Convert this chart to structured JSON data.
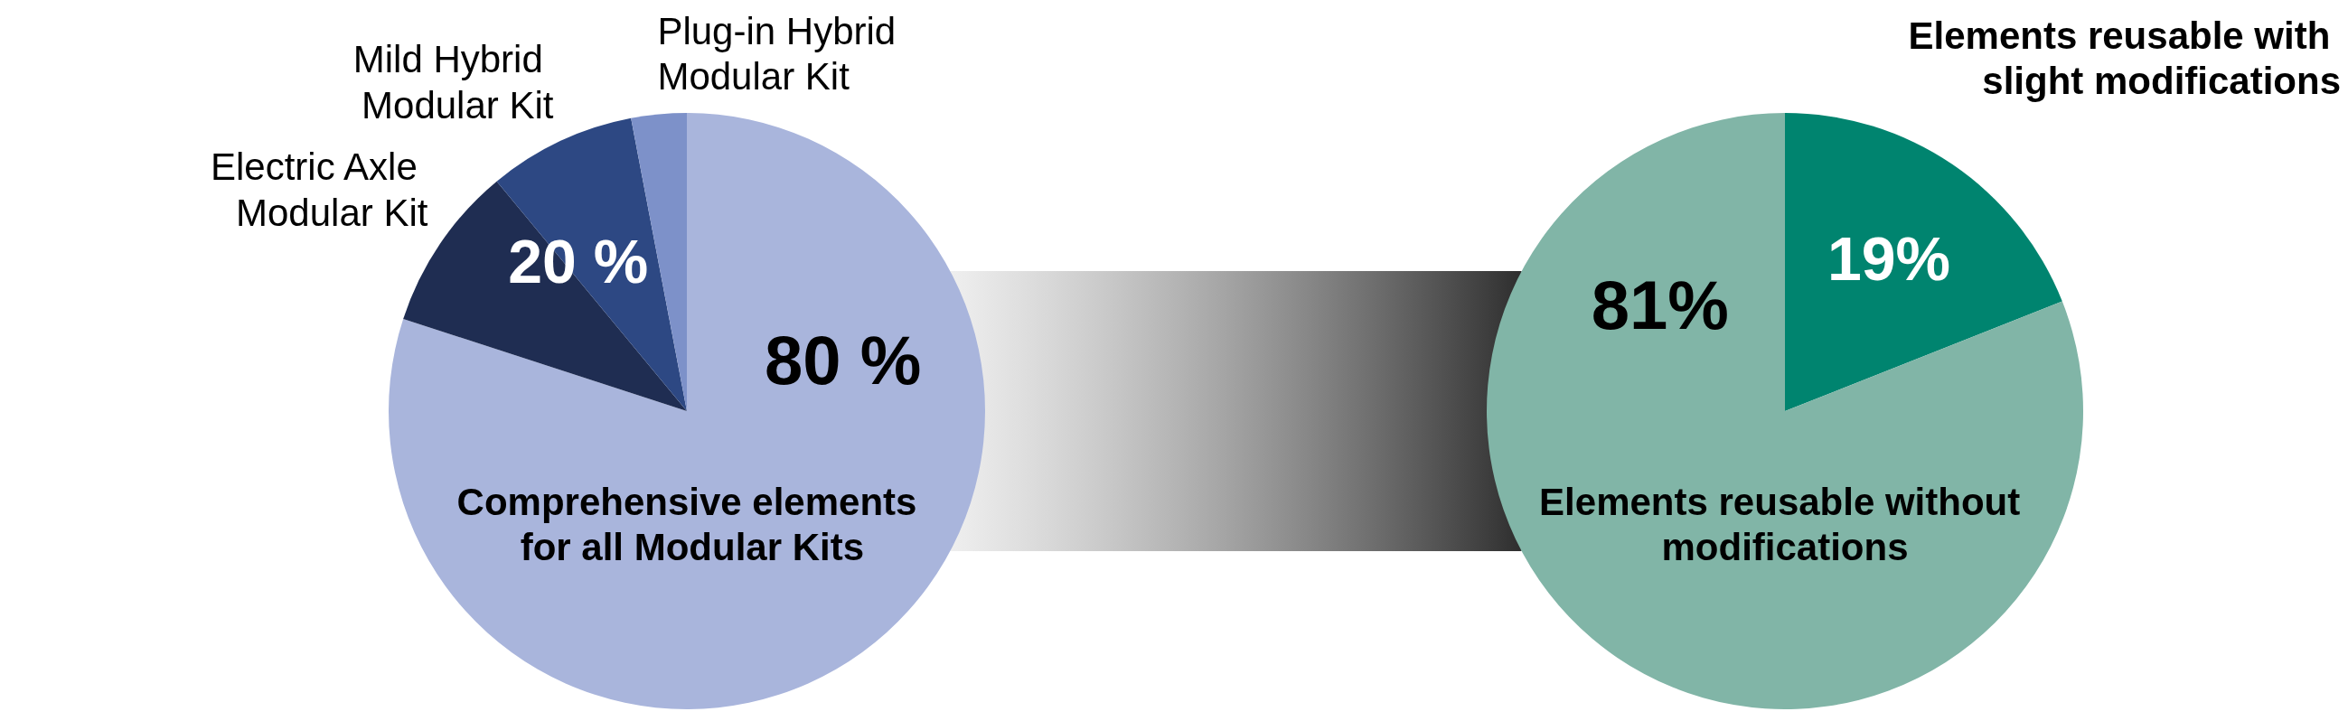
{
  "chart_data": [
    {
      "type": "pie",
      "categories": [
        "Comprehensive elements for all Modular Kits",
        "Electric Axle Modular Kit",
        "Mild Hybrid Modular Kit",
        "Plug-in Hybrid Modular Kit"
      ],
      "values": [
        80,
        9,
        8,
        3
      ],
      "colors": [
        "#a9b5dc",
        "#1f2d52",
        "#2d4883",
        "#7d91c9"
      ],
      "value_labels": [
        "80 %",
        null,
        null,
        null
      ],
      "annotations": [
        "20 %"
      ]
    },
    {
      "type": "pie",
      "categories": [
        "Elements reusable with slight modifications",
        "Elements reusable without modifications"
      ],
      "values": [
        19,
        81
      ],
      "colors": [
        "#00846f",
        "#81b5a7"
      ],
      "value_labels": [
        "19%",
        "81%"
      ]
    }
  ]
}
